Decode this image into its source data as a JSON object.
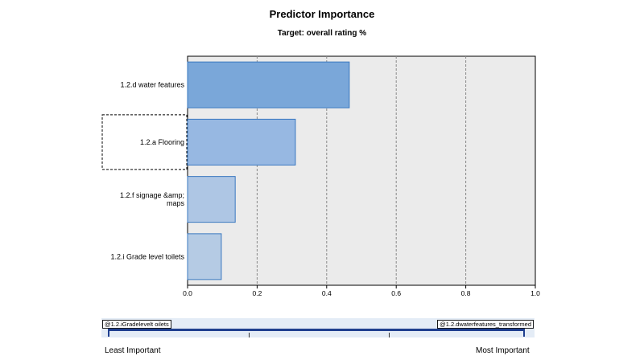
{
  "chart_data": {
    "type": "bar",
    "orientation": "horizontal",
    "title": "Predictor Importance",
    "subtitle": "Target: overall rating %",
    "categories": [
      "1.2.d water features",
      "1.2.a  Flooring",
      "1.2.f signage &amp; maps",
      "1.2.i  Grade level toilets"
    ],
    "category_lines": [
      [
        "1.2.d water features"
      ],
      [
        "1.2.a  Flooring"
      ],
      [
        "1.2.f signage &amp;",
        "maps"
      ],
      [
        "1.2.i  Grade level toilets"
      ]
    ],
    "values": [
      0.465,
      0.31,
      0.137,
      0.097
    ],
    "colors": [
      "#7aa7d9",
      "#97b8e2",
      "#aec6e4",
      "#b5cbe4"
    ],
    "xlim": [
      0.0,
      1.0
    ],
    "xticks": [
      0.0,
      0.2,
      0.4,
      0.6,
      0.8,
      1.0
    ],
    "xtick_labels": [
      "0.0",
      "0.2",
      "0.4",
      "0.6",
      "0.8",
      "1.0"
    ],
    "grid": "vertical dashed",
    "selected_category": "1.2.a  Flooring"
  },
  "slider": {
    "left_tag": "@1.2.iGradelevelt oilets",
    "right_tag": "@1.2.dwaterfeatures_transformed",
    "least_label": "Least Important",
    "most_label": "Most Important"
  }
}
